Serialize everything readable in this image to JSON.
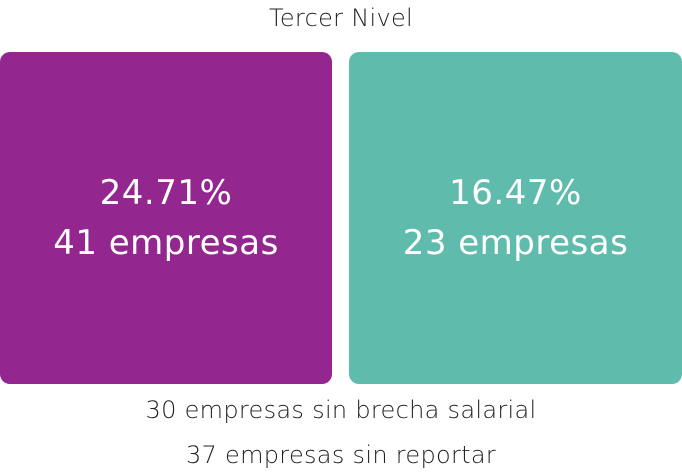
{
  "title": "Tercer Nivel",
  "cards": [
    {
      "percentage": "24.71%",
      "count_text": "41 empresas",
      "color": "#93278F"
    },
    {
      "percentage": "16.47%",
      "count_text": "23 empresas",
      "color": "#5FBCAC"
    }
  ],
  "footer": {
    "line1": "30 empresas sin brecha salarial",
    "line2": "37 empresas sin reportar"
  }
}
